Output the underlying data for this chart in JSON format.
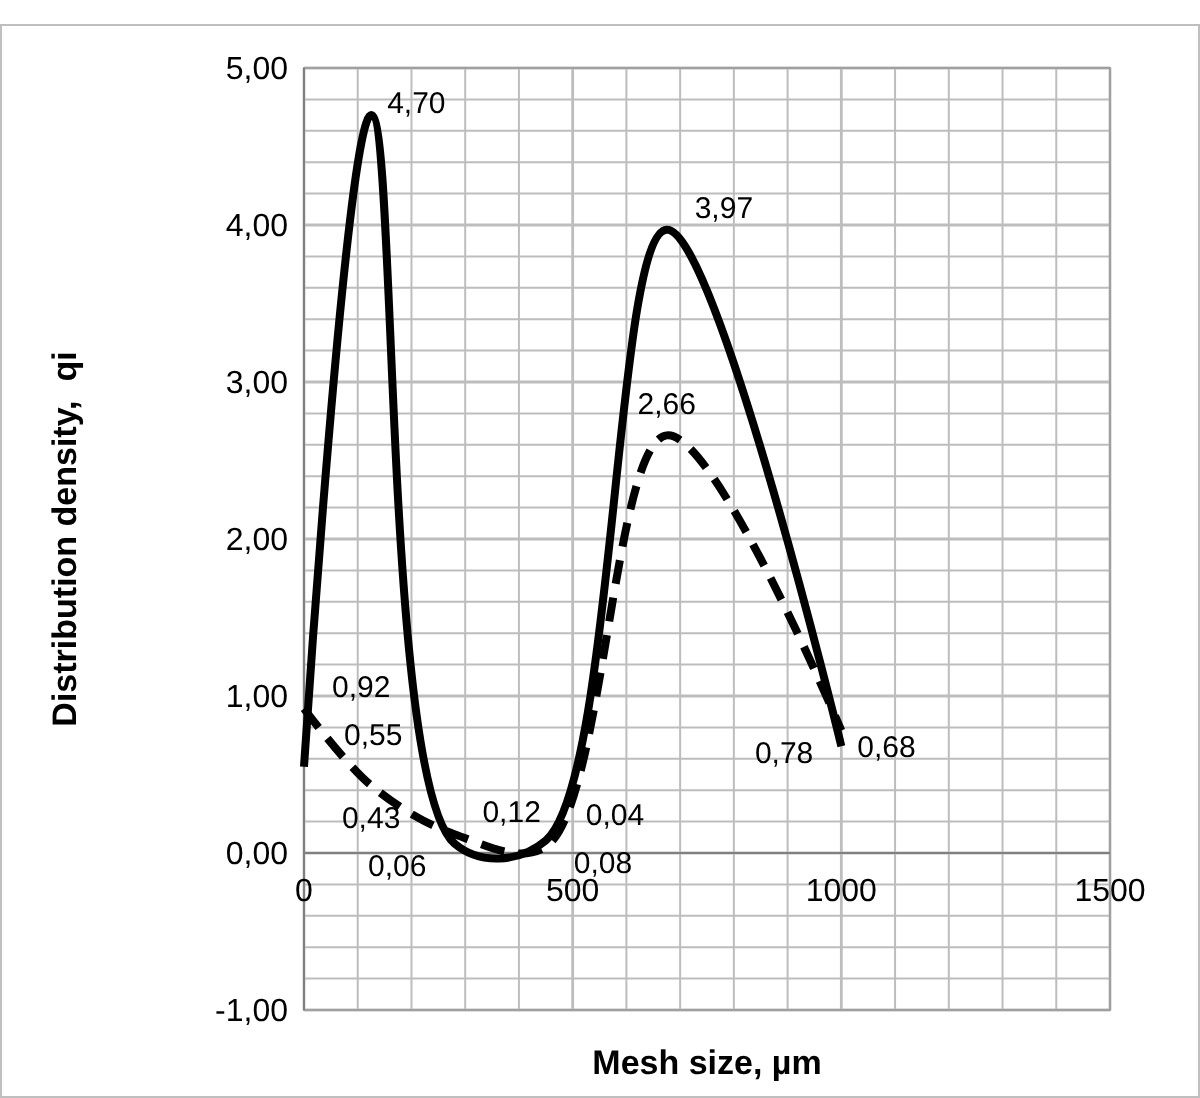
{
  "chart_data": {
    "type": "line",
    "xlabel": "Mesh size, µm",
    "ylabel": "Distribution density,  qi",
    "xlim": [
      0,
      1500
    ],
    "xticks": [
      0,
      500,
      1000,
      1500
    ],
    "ylim": [
      -1,
      5
    ],
    "yticks": [
      {
        "value": -1,
        "label": "-1,00"
      },
      {
        "value": 0,
        "label": "0,00"
      },
      {
        "value": 1,
        "label": "1,00"
      },
      {
        "value": 2,
        "label": "2,00"
      },
      {
        "value": 3,
        "label": "3,00"
      },
      {
        "value": 4,
        "label": "4,00"
      },
      {
        "value": 5,
        "label": "5,00"
      }
    ],
    "grid": true,
    "legend": false,
    "marker": "none",
    "series": [
      {
        "color": "#000000",
        "line_style": "solid",
        "x": [
          0,
          125,
          280,
          450,
          675,
          1000
        ],
        "values": [
          0.55,
          4.7,
          0.06,
          0.08,
          3.97,
          0.68
        ],
        "value_labels": [
          "0,55",
          "4,70",
          "0,06",
          "0,08",
          "3,97",
          "0,68"
        ]
      },
      {
        "color": "#000000",
        "line_style": "dashed",
        "x": [
          0,
          125,
          280,
          450,
          675,
          1000
        ],
        "values": [
          0.92,
          0.43,
          0.12,
          0.04,
          2.66,
          0.78
        ],
        "value_labels": [
          "0,92",
          "0,43",
          "0,12",
          "0,04",
          "2,66",
          "0,78"
        ]
      }
    ]
  }
}
